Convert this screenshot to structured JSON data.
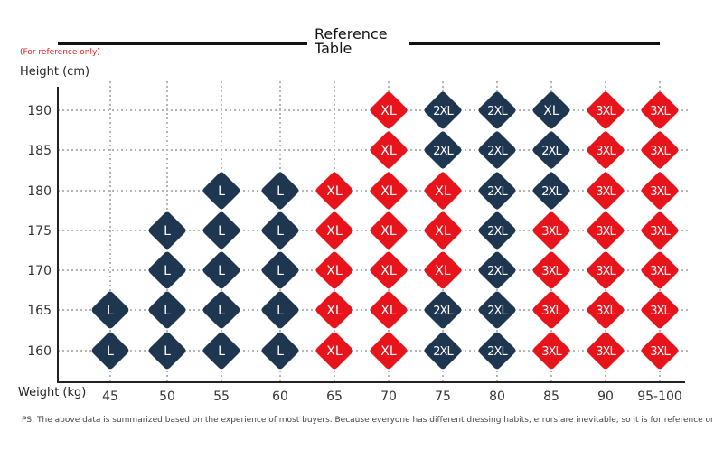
{
  "header": {
    "title": "Reference Table",
    "note": "(For reference only)",
    "footnote": "PS: The above data is summarized based on the experience of most buyers. Because everyone has different dressing habits, errors are inevitable, so it is for reference only."
  },
  "colors": {
    "navy": "#1e3650",
    "red": "#e8141b",
    "grid": "#b5b5b5",
    "axis": "#222222"
  },
  "chart_data": {
    "type": "table",
    "xlabel": "Weight (kg)",
    "ylabel": "Height (cm)",
    "x": [
      "45",
      "50",
      "55",
      "60",
      "65",
      "70",
      "75",
      "80",
      "85",
      "90",
      "95-100"
    ],
    "y": [
      190,
      185,
      180,
      175,
      170,
      165,
      160
    ],
    "grid": "dotted",
    "cells": [
      [
        "",
        "",
        "",
        "",
        "",
        "XL",
        "2XL",
        "2XL",
        "XL",
        "3XL",
        "3XL"
      ],
      [
        "",
        "",
        "",
        "",
        "",
        "XL",
        "2XL",
        "2XL",
        "2XL",
        "3XL",
        "3XL"
      ],
      [
        "",
        "",
        "L",
        "L",
        "XL",
        "XL",
        "XL",
        "2XL",
        "2XL",
        "3XL",
        "3XL"
      ],
      [
        "",
        "L",
        "L",
        "L",
        "XL",
        "XL",
        "XL",
        "2XL",
        "3XL",
        "3XL",
        "3XL"
      ],
      [
        "",
        "L",
        "L",
        "L",
        "XL",
        "XL",
        "XL",
        "2XL",
        "3XL",
        "3XL",
        "3XL"
      ],
      [
        "L",
        "L",
        "L",
        "L",
        "XL",
        "XL",
        "2XL",
        "2XL",
        "3XL",
        "3XL",
        "3XL"
      ],
      [
        "L",
        "L",
        "L",
        "L",
        "XL",
        "XL",
        "2XL",
        "2XL",
        "3XL",
        "3XL",
        "3XL"
      ]
    ],
    "cell_colors": [
      [
        "",
        "",
        "",
        "",
        "",
        "red",
        "navy",
        "navy",
        "navy",
        "red",
        "red"
      ],
      [
        "",
        "",
        "",
        "",
        "",
        "red",
        "navy",
        "navy",
        "navy",
        "red",
        "red"
      ],
      [
        "",
        "",
        "navy",
        "navy",
        "red",
        "red",
        "red",
        "navy",
        "navy",
        "red",
        "red"
      ],
      [
        "",
        "navy",
        "navy",
        "navy",
        "red",
        "red",
        "red",
        "navy",
        "red",
        "red",
        "red"
      ],
      [
        "",
        "navy",
        "navy",
        "navy",
        "red",
        "red",
        "red",
        "navy",
        "red",
        "red",
        "red"
      ],
      [
        "navy",
        "navy",
        "navy",
        "navy",
        "red",
        "red",
        "navy",
        "navy",
        "red",
        "red",
        "red"
      ],
      [
        "navy",
        "navy",
        "navy",
        "navy",
        "red",
        "red",
        "navy",
        "navy",
        "red",
        "red",
        "red"
      ]
    ]
  }
}
